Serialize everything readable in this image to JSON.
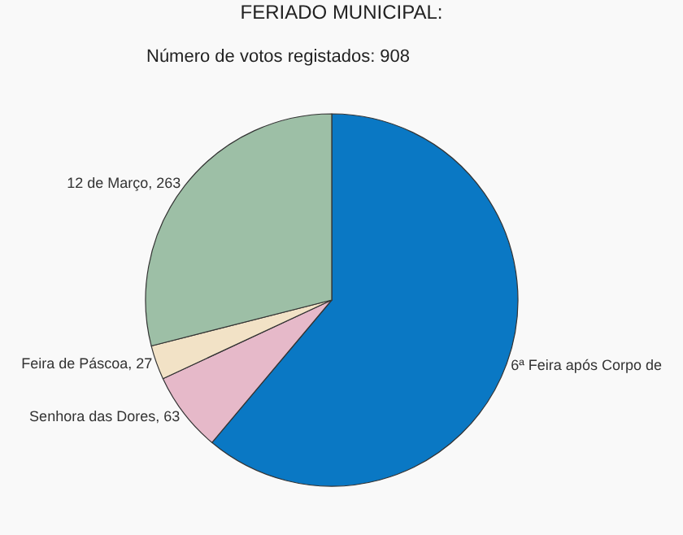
{
  "chart_data": {
    "type": "pie",
    "title": "FERIADO MUNICIPAL:",
    "subtitle": "Número de votos registados: 908",
    "categories": [
      "6ª Feira após Corpo de",
      "Senhora das Dores",
      "Feira de Páscoa",
      "12 de Março"
    ],
    "values": [
      555,
      63,
      27,
      263
    ],
    "value_labels": [
      null,
      "63",
      "27",
      "263"
    ],
    "colors": [
      "#0a78c4",
      "#e6b9c9",
      "#f2e2c6",
      "#9dbfa6"
    ],
    "legend": false
  }
}
